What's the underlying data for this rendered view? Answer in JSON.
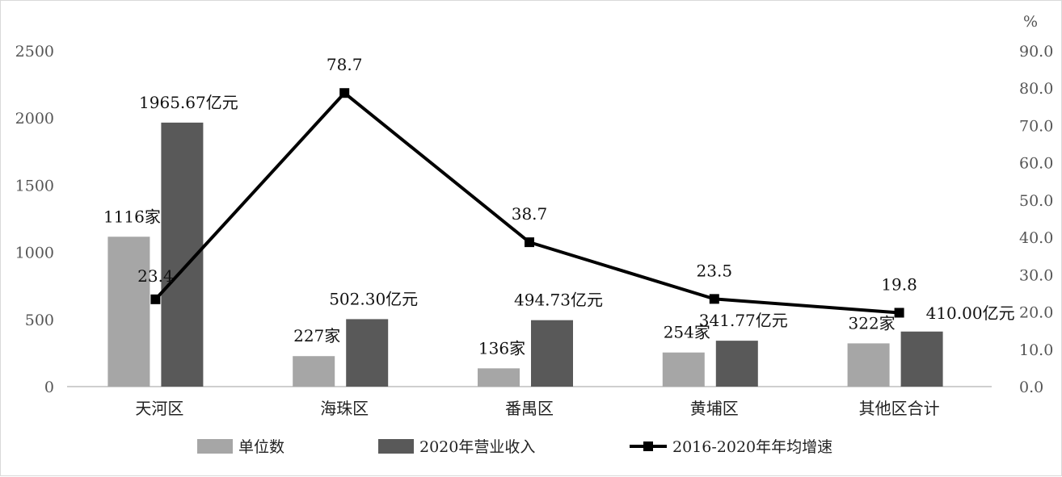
{
  "chart_data": {
    "type": "bar",
    "categories": [
      "天河区",
      "海珠区",
      "番禺区",
      "黄埔区",
      "其他区合计"
    ],
    "series": [
      {
        "name": "单位数",
        "kind": "bar",
        "axis": "left",
        "color": "#a6a6a6",
        "values": [
          1116,
          227,
          136,
          254,
          322
        ],
        "labels": [
          "1116家",
          "227家",
          "136家",
          "254家",
          "322家"
        ]
      },
      {
        "name": "2020年营业收入",
        "kind": "bar",
        "axis": "left",
        "color": "#595959",
        "values": [
          1965.67,
          502.3,
          494.73,
          341.77,
          410.0
        ],
        "labels": [
          "1965.67亿元",
          "502.30亿元",
          "494.73亿元",
          "341.77亿元",
          "410.00亿元"
        ]
      },
      {
        "name": "2016-2020年年均增速",
        "kind": "line",
        "axis": "right",
        "color": "#000000",
        "values": [
          23.4,
          78.7,
          38.7,
          23.5,
          19.8
        ],
        "labels": [
          "23.4",
          "78.7",
          "38.7",
          "23.5",
          "19.8"
        ]
      }
    ],
    "y_left": {
      "ylim": [
        0,
        2500
      ],
      "ticks": [
        "0",
        "500",
        "1000",
        "1500",
        "2000",
        "2500"
      ]
    },
    "y_right": {
      "unit": "%",
      "ylim": [
        0,
        90
      ],
      "ticks": [
        "0.0",
        "10.0",
        "20.0",
        "30.0",
        "40.0",
        "50.0",
        "60.0",
        "70.0",
        "80.0",
        "90.0"
      ]
    },
    "grid": false,
    "legend_position": "bottom"
  }
}
